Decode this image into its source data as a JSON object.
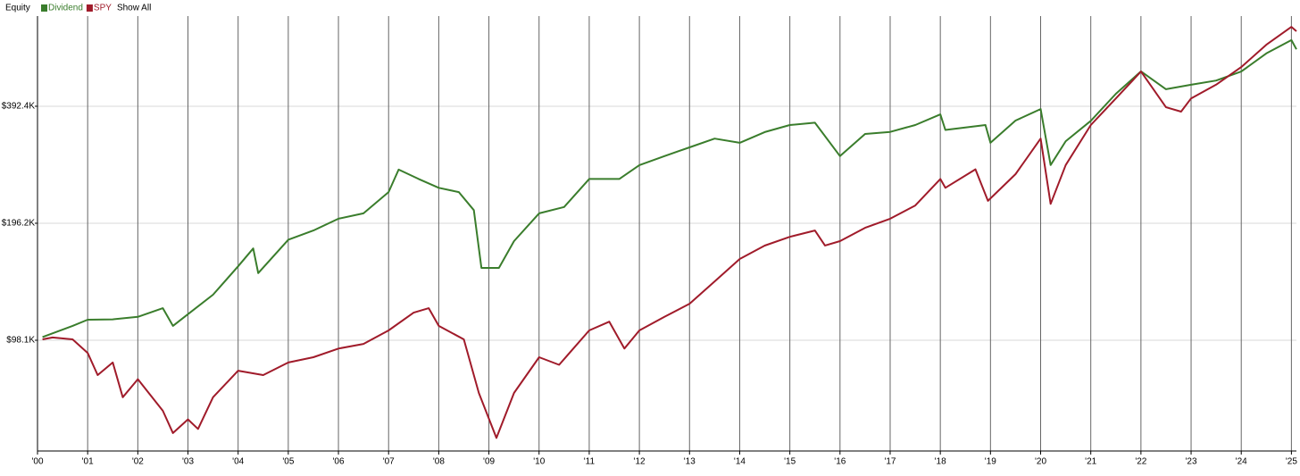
{
  "chart_data": {
    "type": "line",
    "title": "Equity",
    "show_all_label": "Show All",
    "log_scale": true,
    "grid": true,
    "legend": "top-left",
    "xlim": [
      2000,
      2025.1
    ],
    "xticks": [
      {
        "value": 2000,
        "label": "'00"
      },
      {
        "value": 2001,
        "label": "'01"
      },
      {
        "value": 2002,
        "label": "'02"
      },
      {
        "value": 2003,
        "label": "'03"
      },
      {
        "value": 2004,
        "label": "'04"
      },
      {
        "value": 2005,
        "label": "'05"
      },
      {
        "value": 2006,
        "label": "'06"
      },
      {
        "value": 2007,
        "label": "'07"
      },
      {
        "value": 2008,
        "label": "'08"
      },
      {
        "value": 2009,
        "label": "'09"
      },
      {
        "value": 2010,
        "label": "'10"
      },
      {
        "value": 2011,
        "label": "'11"
      },
      {
        "value": 2012,
        "label": "'12"
      },
      {
        "value": 2013,
        "label": "'13"
      },
      {
        "value": 2014,
        "label": "'14"
      },
      {
        "value": 2015,
        "label": "'15"
      },
      {
        "value": 2016,
        "label": "'16"
      },
      {
        "value": 2017,
        "label": "'17"
      },
      {
        "value": 2018,
        "label": "'18"
      },
      {
        "value": 2019,
        "label": "'19"
      },
      {
        "value": 2020,
        "label": "'20"
      },
      {
        "value": 2021,
        "label": "'21"
      },
      {
        "value": 2022,
        "label": "'22"
      },
      {
        "value": 2023,
        "label": "'23"
      },
      {
        "value": 2024,
        "label": "'24"
      },
      {
        "value": 2025,
        "label": "'25"
      }
    ],
    "ylim": [
      50900,
      669500
    ],
    "yticks": [
      {
        "value": 98100,
        "label": "$98.1K"
      },
      {
        "value": 196200,
        "label": "$196.2K"
      },
      {
        "value": 392400,
        "label": "$392.4K"
      }
    ],
    "series": [
      {
        "name": "Dividend",
        "color": "#3a7d2c",
        "x": [
          2000.1,
          2000.7,
          2001.0,
          2001.5,
          2002.0,
          2002.5,
          2002.7,
          2003.0,
          2003.5,
          2004.0,
          2004.3,
          2004.4,
          2005.0,
          2005.5,
          2006.0,
          2006.5,
          2007.0,
          2007.2,
          2007.6,
          2008.0,
          2008.4,
          2008.7,
          2008.85,
          2009.2,
          2009.5,
          2010.0,
          2010.5,
          2011.0,
          2011.6,
          2012.0,
          2012.5,
          2013.0,
          2013.5,
          2014.0,
          2014.5,
          2015.0,
          2015.5,
          2016.0,
          2016.5,
          2017.0,
          2017.5,
          2018.0,
          2018.1,
          2018.9,
          2019.0,
          2019.5,
          2020.0,
          2020.2,
          2020.5,
          2021.0,
          2021.5,
          2022.0,
          2022.5,
          2023.0,
          2023.5,
          2024.0,
          2024.5,
          2025.0,
          2025.1
        ],
        "values": [
          100000,
          106800,
          110800,
          111000,
          112700,
          118600,
          106800,
          114500,
          128500,
          152000,
          169000,
          146000,
          178000,
          188000,
          201500,
          208000,
          236000,
          269600,
          255000,
          242000,
          236000,
          212000,
          150600,
          150600,
          176500,
          208000,
          216000,
          255000,
          255000,
          276800,
          292000,
          307600,
          324000,
          316000,
          336800,
          351000,
          356000,
          292000,
          333000,
          337000,
          351000,
          374000,
          341000,
          351000,
          316000,
          360500,
          386000,
          277000,
          319000,
          360000,
          422600,
          482500,
          434000,
          445600,
          457000,
          482000,
          536700,
          580600,
          550000
        ]
      },
      {
        "name": "SPY",
        "color": "#a01b2a",
        "x": [
          2000.1,
          2000.3,
          2000.7,
          2001.0,
          2001.2,
          2001.5,
          2001.7,
          2002.0,
          2002.5,
          2002.7,
          2003.0,
          2003.2,
          2003.5,
          2004.0,
          2004.5,
          2005.0,
          2005.5,
          2006.0,
          2006.5,
          2007.0,
          2007.5,
          2007.8,
          2008.0,
          2008.5,
          2008.8,
          2009.15,
          2009.5,
          2010.0,
          2010.4,
          2011.0,
          2011.4,
          2011.7,
          2012.0,
          2012.5,
          2013.0,
          2013.5,
          2014.0,
          2014.5,
          2015.0,
          2015.5,
          2015.7,
          2016.0,
          2016.5,
          2017.0,
          2017.5,
          2018.0,
          2018.1,
          2018.7,
          2018.95,
          2019.5,
          2020.0,
          2020.2,
          2020.5,
          2021.0,
          2021.5,
          2022.0,
          2022.5,
          2022.8,
          2023.0,
          2023.5,
          2024.0,
          2024.5,
          2025.0,
          2025.1
        ],
        "values": [
          98600,
          99700,
          98600,
          91000,
          79800,
          86000,
          70000,
          77900,
          64600,
          56600,
          61400,
          58000,
          70000,
          81900,
          79800,
          86000,
          88700,
          93400,
          96000,
          104000,
          115500,
          118600,
          106800,
          98600,
          71800,
          55000,
          71800,
          88700,
          84800,
          104000,
          109500,
          93400,
          104000,
          112700,
          121800,
          139000,
          158800,
          171900,
          181000,
          188000,
          172000,
          176500,
          191000,
          201500,
          218000,
          255000,
          242000,
          270000,
          224000,
          262500,
          324000,
          220000,
          277000,
          351000,
          411000,
          482000,
          390000,
          380000,
          411000,
          446000,
          495000,
          565000,
          628000,
          612000
        ]
      }
    ]
  }
}
